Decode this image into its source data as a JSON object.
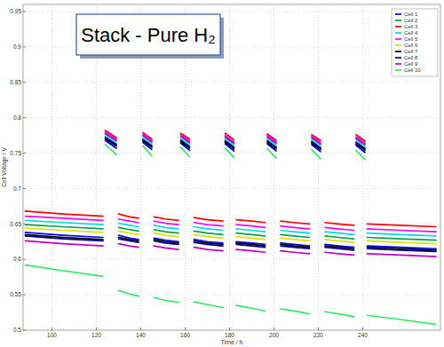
{
  "chart_data": {
    "type": "line",
    "title": "Stack - Pure H₂",
    "x_label": "Time / h",
    "y_label": "Cell Voltage / V",
    "x": [
      88,
      105,
      123,
      123.5,
      124,
      129,
      129.5,
      130,
      135,
      139,
      140,
      141,
      145,
      145.5,
      146,
      151,
      157,
      157.5,
      158,
      162,
      163,
      164,
      170,
      177,
      177.5,
      178,
      182,
      182.5,
      183,
      190,
      196,
      196.5,
      197,
      201,
      202,
      203,
      209,
      216,
      216.5,
      217,
      221,
      222,
      223,
      229,
      236,
      236.5,
      237,
      241,
      241.5,
      242,
      257,
      273
    ],
    "series": [
      {
        "name": "Cell 1",
        "color": "#0000ff",
        "values": [
          0.638,
          0.634,
          0.631,
          null,
          0.768,
          0.757,
          null,
          0.634,
          0.63,
          0.628,
          null,
          0.765,
          0.755,
          null,
          0.63,
          0.627,
          0.625,
          null,
          0.764,
          0.754,
          null,
          0.628,
          0.625,
          0.623,
          null,
          0.763,
          0.753,
          null,
          0.625,
          0.623,
          0.621,
          null,
          0.763,
          0.753,
          null,
          0.623,
          0.621,
          0.619,
          null,
          0.762,
          0.752,
          null,
          0.621,
          0.619,
          0.617,
          null,
          0.761,
          0.751,
          null,
          0.619,
          0.617,
          0.615
        ]
      },
      {
        "name": "Cell 2",
        "color": "#00a050",
        "values": [
          0.649,
          0.646,
          0.643,
          null,
          0.773,
          0.763,
          null,
          0.645,
          0.642,
          0.64,
          null,
          0.77,
          0.761,
          null,
          0.642,
          0.639,
          0.637,
          null,
          0.769,
          0.76,
          null,
          0.64,
          0.637,
          0.635,
          null,
          0.768,
          0.759,
          null,
          0.637,
          0.635,
          0.633,
          null,
          0.768,
          0.759,
          null,
          0.635,
          0.633,
          0.631,
          null,
          0.767,
          0.758,
          null,
          0.633,
          0.631,
          0.629,
          null,
          0.766,
          0.757,
          null,
          0.631,
          0.629,
          0.627
        ]
      },
      {
        "name": "Cell 3",
        "color": "#ff0000",
        "values": [
          0.668,
          0.664,
          0.661,
          null,
          0.782,
          0.772,
          null,
          0.664,
          0.66,
          0.658,
          null,
          0.779,
          0.77,
          null,
          0.66,
          0.657,
          0.655,
          null,
          0.778,
          0.77,
          null,
          0.659,
          0.656,
          0.654,
          null,
          0.778,
          0.769,
          null,
          0.656,
          0.654,
          0.652,
          null,
          0.777,
          0.768,
          null,
          0.654,
          0.652,
          0.65,
          null,
          0.776,
          0.768,
          null,
          0.652,
          0.65,
          0.648,
          null,
          0.776,
          0.767,
          null,
          0.65,
          0.648,
          0.646
        ]
      },
      {
        "name": "Cell 4",
        "color": "#00d8e0",
        "values": [
          0.655,
          0.652,
          0.649,
          null,
          0.776,
          0.766,
          null,
          0.651,
          0.648,
          0.646,
          null,
          0.773,
          0.764,
          null,
          0.648,
          0.645,
          0.643,
          null,
          0.772,
          0.763,
          null,
          0.646,
          0.643,
          0.641,
          null,
          0.771,
          0.762,
          null,
          0.643,
          0.641,
          0.639,
          null,
          0.771,
          0.762,
          null,
          0.641,
          0.639,
          0.637,
          null,
          0.77,
          0.761,
          null,
          0.639,
          0.637,
          0.635,
          null,
          0.769,
          0.76,
          null,
          0.637,
          0.635,
          0.633
        ]
      },
      {
        "name": "Cell 5",
        "color": "#ff00ff",
        "values": [
          0.661,
          0.658,
          0.655,
          null,
          0.78,
          0.77,
          null,
          0.657,
          0.654,
          0.652,
          null,
          0.777,
          0.768,
          null,
          0.654,
          0.651,
          0.649,
          null,
          0.776,
          0.767,
          null,
          0.652,
          0.649,
          0.647,
          null,
          0.775,
          0.766,
          null,
          0.649,
          0.647,
          0.645,
          null,
          0.775,
          0.766,
          null,
          0.647,
          0.645,
          0.643,
          null,
          0.774,
          0.765,
          null,
          0.645,
          0.643,
          0.641,
          null,
          0.773,
          0.764,
          null,
          0.643,
          0.641,
          0.639
        ]
      },
      {
        "name": "Cell 6",
        "color": "#e0e000",
        "values": [
          0.644,
          0.641,
          0.638,
          null,
          0.771,
          0.761,
          null,
          0.64,
          0.637,
          0.635,
          null,
          0.768,
          0.759,
          null,
          0.637,
          0.634,
          0.632,
          null,
          0.767,
          0.758,
          null,
          0.635,
          0.632,
          0.63,
          null,
          0.766,
          0.757,
          null,
          0.632,
          0.63,
          0.628,
          null,
          0.766,
          0.757,
          null,
          0.63,
          0.628,
          0.626,
          null,
          0.765,
          0.756,
          null,
          0.628,
          0.626,
          0.624,
          null,
          0.764,
          0.755,
          null,
          0.626,
          0.624,
          0.622
        ]
      },
      {
        "name": "Cell 7",
        "color": "#000000",
        "values": [
          0.635,
          0.631,
          0.628,
          null,
          0.77,
          0.76,
          null,
          0.631,
          0.628,
          0.626,
          null,
          0.767,
          0.758,
          null,
          0.628,
          0.625,
          0.623,
          null,
          0.766,
          0.757,
          null,
          0.626,
          0.623,
          0.621,
          null,
          0.765,
          0.756,
          null,
          0.623,
          0.621,
          0.619,
          null,
          0.765,
          0.756,
          null,
          0.621,
          0.619,
          0.617,
          null,
          0.764,
          0.755,
          null,
          0.619,
          0.617,
          0.615,
          null,
          0.763,
          0.754,
          null,
          0.617,
          0.615,
          0.613
        ]
      },
      {
        "name": "Cell 8",
        "color": "#000080",
        "values": [
          0.633,
          0.629,
          0.626,
          null,
          0.772,
          0.762,
          null,
          0.629,
          0.626,
          0.624,
          null,
          0.769,
          0.76,
          null,
          0.626,
          0.623,
          0.621,
          null,
          0.768,
          0.759,
          null,
          0.624,
          0.621,
          0.619,
          null,
          0.767,
          0.758,
          null,
          0.621,
          0.619,
          0.617,
          null,
          0.767,
          0.758,
          null,
          0.619,
          0.617,
          0.615,
          null,
          0.766,
          0.757,
          null,
          0.617,
          0.615,
          0.613,
          null,
          0.765,
          0.756,
          null,
          0.615,
          0.613,
          0.611
        ]
      },
      {
        "name": "Cell 9",
        "color": "#c000c0",
        "values": [
          0.626,
          0.622,
          0.619,
          null,
          0.778,
          0.768,
          null,
          0.622,
          0.619,
          0.617,
          null,
          0.775,
          0.766,
          null,
          0.619,
          0.616,
          0.614,
          null,
          0.774,
          0.765,
          null,
          0.617,
          0.614,
          0.612,
          null,
          0.773,
          0.764,
          null,
          0.614,
          0.612,
          0.61,
          null,
          0.773,
          0.764,
          null,
          0.612,
          0.61,
          0.608,
          null,
          0.772,
          0.763,
          null,
          0.61,
          0.608,
          0.606,
          null,
          0.771,
          0.762,
          null,
          0.608,
          0.606,
          0.604
        ]
      },
      {
        "name": "Cell 10",
        "color": "#33e866",
        "values": [
          0.592,
          0.584,
          0.576,
          null,
          0.762,
          0.748,
          null,
          0.556,
          0.551,
          0.548,
          null,
          0.76,
          0.746,
          null,
          0.546,
          0.542,
          0.539,
          null,
          0.758,
          0.745,
          null,
          0.54,
          0.536,
          0.532,
          null,
          0.757,
          0.744,
          null,
          0.535,
          0.531,
          0.527,
          null,
          0.756,
          0.743,
          null,
          0.53,
          0.527,
          0.523,
          null,
          0.755,
          0.742,
          null,
          0.526,
          0.523,
          0.519,
          null,
          0.754,
          0.741,
          null,
          0.521,
          0.515,
          0.508
        ]
      }
    ],
    "xlim": [
      87,
      275
    ],
    "ylim": [
      0.5,
      0.96
    ],
    "xticks": [
      100,
      120,
      140,
      160,
      180,
      200,
      220,
      240
    ],
    "yticks": [
      0.5,
      0.55,
      0.6,
      0.65,
      0.7,
      0.75,
      0.8,
      0.85,
      0.9,
      0.95
    ],
    "grid": true,
    "legend": "upper right",
    "line_style": "solid",
    "marker": "none"
  }
}
